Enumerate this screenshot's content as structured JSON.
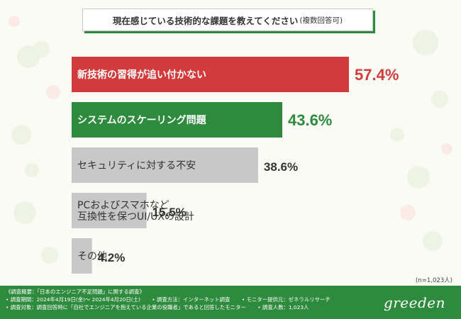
{
  "title": {
    "main": "現在感じている技術的な課題を教えてください",
    "sub": "(複数回答可)"
  },
  "chart_data": {
    "type": "bar",
    "orientation": "horizontal",
    "categories": [
      [
        "新技術の習得が追い付かない"
      ],
      [
        "システムのスケーリング問題"
      ],
      [
        "セキュリティに対する不安"
      ],
      [
        "PCおよびスマホなど",
        "互換性を保つUI/UXの設計"
      ],
      [
        "その他"
      ]
    ],
    "values": [
      57.4,
      43.6,
      38.6,
      15.5,
      4.2
    ],
    "value_labels": [
      "57.4%",
      "43.6%",
      "38.6%",
      "15.5%",
      "4.2%"
    ],
    "bar_colors": [
      "#d23b3b",
      "#2e8b3d",
      "#c8c8c8",
      "#c8c8c8",
      "#c8c8c8"
    ],
    "label_colors": [
      "#ffffff",
      "#ffffff",
      "#333333",
      "#333333",
      "#333333"
    ],
    "value_colors": [
      "#d23b3b",
      "#2e8b3d",
      "#333333",
      "#333333",
      "#333333"
    ],
    "xlim": [
      0,
      57.4
    ]
  },
  "sample_size": "(n=1,023人)",
  "footer": {
    "line1": "《調査概要：「日本のエンジニア不足問題」に関する調査》",
    "line2": [
      "• 調査期間：2024年4月19日(金)～ 2024年4月20日(土)",
      "• 調査方法：インターネット調査",
      "• モニター提供元：ゼネラルリサーチ"
    ],
    "line3": [
      "• 調査対象：調査回答時に「自社でエンジニアを抱えている企業の役職者」であると回答したモニター",
      "• 調査人数：1,023人"
    ],
    "logo": "greeden"
  },
  "colors": {
    "accent_green": "#2e8b3d",
    "accent_red": "#d23b3b",
    "neutral_bar": "#c8c8c8"
  }
}
